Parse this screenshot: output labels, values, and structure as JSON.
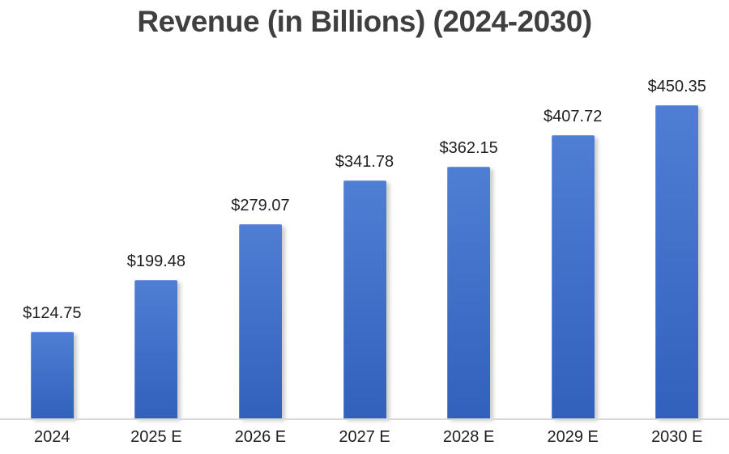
{
  "title": "Revenue (in Billions) (2024-2030)",
  "chart_data": {
    "type": "bar",
    "title": "Revenue (in Billions) (2024-2030)",
    "categories": [
      "2024",
      "2025 E",
      "2026 E",
      "2027 E",
      "2028 E",
      "2029 E",
      "2030 E"
    ],
    "values": [
      124.75,
      199.48,
      279.07,
      341.78,
      362.15,
      407.72,
      450.35
    ],
    "data_labels": [
      "$124.75",
      "$199.48",
      "$279.07",
      "$341.78",
      "$362.15",
      "$407.72",
      "$450.35"
    ],
    "xlabel": "",
    "ylabel": "",
    "ylim": [
      0,
      520
    ],
    "grid": false,
    "legend_position": "none",
    "y_axis_visible": false,
    "colors": {
      "bar_fill": "#4472c4",
      "bar_gradient_top": "#4f7ed4",
      "bar_gradient_bottom": "#3161bc",
      "axis_line": "#d9d9d9",
      "title_text": "#3f3f3f",
      "label_text": "#1f1f1f",
      "background": "#ffffff"
    }
  }
}
